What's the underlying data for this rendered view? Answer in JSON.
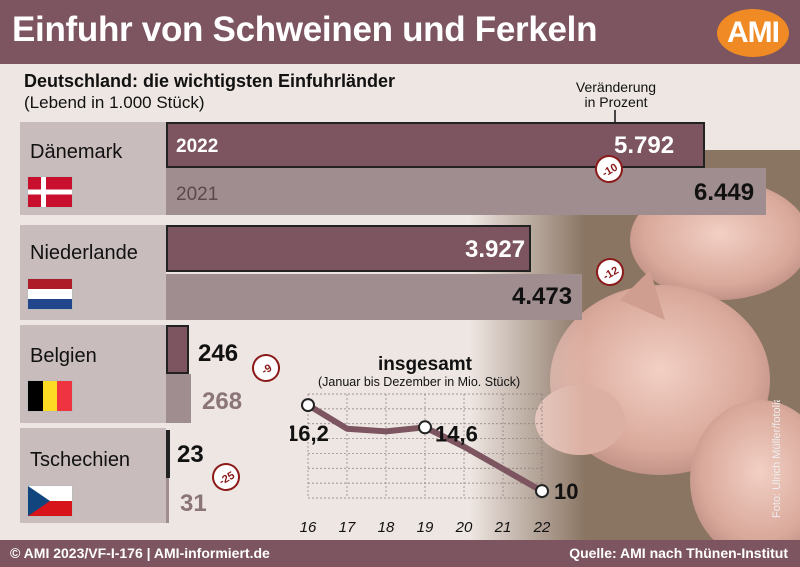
{
  "title": "Einfuhr von Schweinen und Ferkeln",
  "logo": "AMI",
  "subtitle": "Deutschland: die wichtigsten Einfuhrländer",
  "unit_note": "(Lebend in 1.000 Stück)",
  "change_label_line1": "Veränderung",
  "change_label_line2": "in Prozent",
  "photo_credit": "Foto: Ulrich Müller/fotolia",
  "footer_left": "© AMI 2023/VF-I-176 | AMI-informiert.de",
  "footer_right": "Quelle: AMI nach Thünen-Institut",
  "colors": {
    "bar_2022": "#7c5560",
    "bar_2021": "#a08d90",
    "accent": "#f08a24",
    "badge": "#8b1a1a"
  },
  "chart_data": [
    {
      "type": "bar",
      "title": "Deutschland: die wichtigsten Einfuhrländer",
      "subtitle": "(Lebend in 1.000 Stück)",
      "categories": [
        "Dänemark",
        "Niederlande",
        "Belgien",
        "Tschechien"
      ],
      "flags": [
        "flag-denmark-icon",
        "flag-netherlands-icon",
        "flag-belgium-icon",
        "flag-czech-icon"
      ],
      "series": [
        {
          "name": "2022",
          "values": [
            5792,
            3927,
            246,
            23
          ],
          "labels": [
            "5.792",
            "3.927",
            "246",
            "23"
          ]
        },
        {
          "name": "2021",
          "values": [
            6449,
            4473,
            268,
            31
          ],
          "labels": [
            "6.449",
            "4.473",
            "268",
            "31"
          ]
        }
      ],
      "change_percent": [
        -10,
        -12,
        -9,
        -25
      ]
    },
    {
      "type": "line",
      "title": "insgesamt",
      "subtitle": "(Januar bis Dezember in Mio. Stück)",
      "x": [
        "16",
        "17",
        "18",
        "19",
        "20",
        "21",
        "22"
      ],
      "y": [
        16.2,
        14.5,
        14.3,
        14.6,
        13.2,
        11.6,
        10.0
      ],
      "point_labels": [
        {
          "index": 0,
          "text": "16,2"
        },
        {
          "index": 3,
          "text": "14,6"
        },
        {
          "index": 6,
          "text": "10,0"
        }
      ],
      "ylim": [
        9.5,
        17
      ],
      "grid": true
    }
  ]
}
